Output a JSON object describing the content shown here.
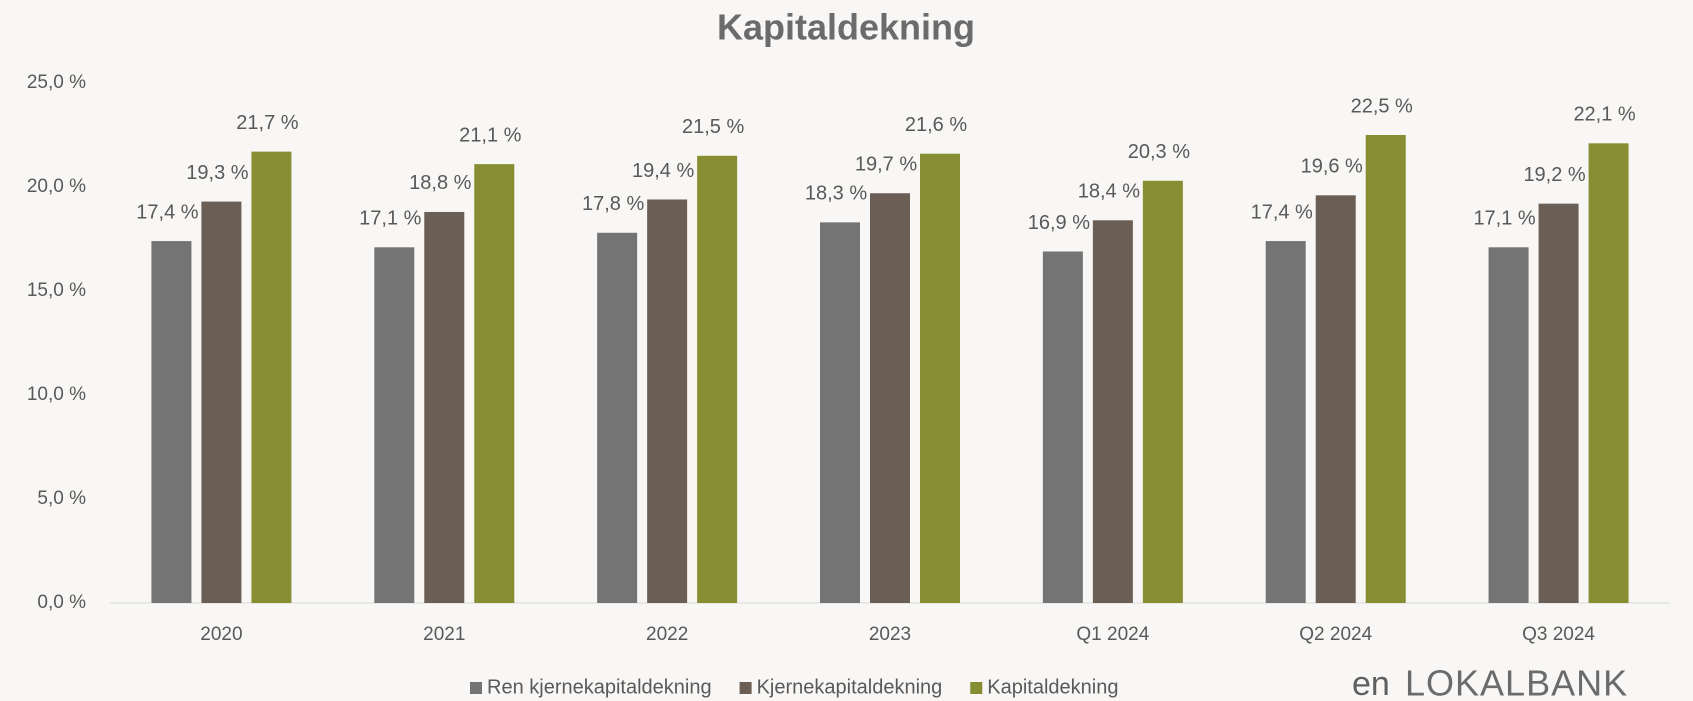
{
  "chart_data": {
    "type": "bar",
    "title": "Kapitaldekning",
    "categories": [
      "2020",
      "2021",
      "2022",
      "2023",
      "Q1 2024",
      "Q2 2024",
      "Q3 2024"
    ],
    "series": [
      {
        "name": "Ren kjernekapitaldekning",
        "color": "#737473",
        "values": [
          17.4,
          17.1,
          17.8,
          18.3,
          16.9,
          17.4,
          17.1
        ],
        "value_labels": [
          "17,4 %",
          "17,1 %",
          "17,8 %",
          "18,3 %",
          "16,9 %",
          "17,4 %",
          "17,1 %"
        ]
      },
      {
        "name": "Kjernekapitaldekning",
        "color": "#6a5e55",
        "values": [
          19.3,
          18.8,
          19.4,
          19.7,
          18.4,
          19.6,
          19.2
        ],
        "value_labels": [
          "19,3 %",
          "18,8 %",
          "19,4 %",
          "19,7 %",
          "18,4 %",
          "19,6 %",
          "19,2 %"
        ]
      },
      {
        "name": "Kapitaldekning",
        "color": "#878d32",
        "values": [
          21.7,
          21.1,
          21.5,
          21.6,
          20.3,
          22.5,
          22.1
        ],
        "value_labels": [
          "21,7 %",
          "21,1 %",
          "21,5 %",
          "21,6 %",
          "20,3 %",
          "22,5 %",
          "22,1 %"
        ]
      }
    ],
    "ylim": [
      0,
      25
    ],
    "yticks": [
      {
        "value": 0,
        "label": "0,0 %"
      },
      {
        "value": 5,
        "label": "5,0 %"
      },
      {
        "value": 10,
        "label": "10,0 %"
      },
      {
        "value": 15,
        "label": "15,0 %"
      },
      {
        "value": 20,
        "label": "20,0 %"
      },
      {
        "value": 25,
        "label": "25,0 %"
      }
    ],
    "grid": false,
    "legend": "bottom"
  },
  "logo": {
    "prefix": "en",
    "name": "LOKALBANK"
  }
}
